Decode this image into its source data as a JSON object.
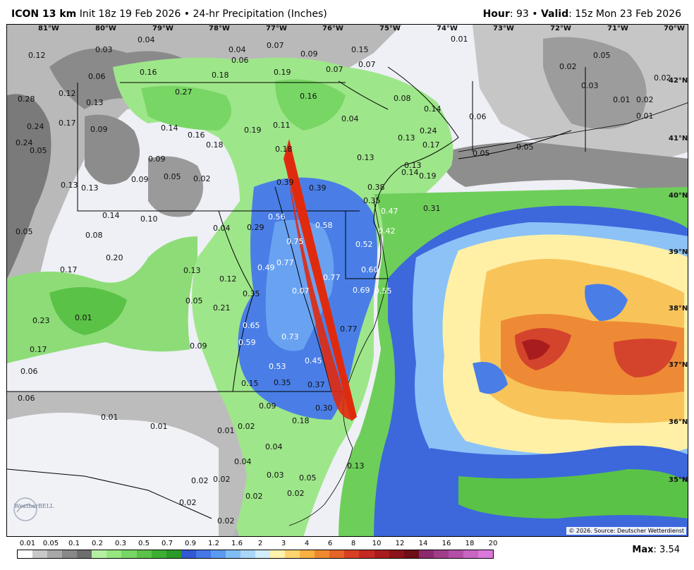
{
  "header": {
    "model": "ICON 13 km",
    "init": "Init 18z 19 Feb 2026",
    "separator": "•",
    "product": "24-hr Precipitation (Inches)",
    "hour_label": "Hour",
    "hour_value": ": 93",
    "valid_label": "Valid",
    "valid_value": ": 15z Mon 23 Feb 2026"
  },
  "map": {
    "longitudes": [
      "81°W",
      "80°W",
      "79°W",
      "78°W",
      "77°W",
      "76°W",
      "75°W",
      "74°W",
      "73°W",
      "72°W",
      "71°W",
      "70°W"
    ],
    "latitudes": [
      "42°N",
      "41°N",
      "40°N",
      "39°N",
      "38°N",
      "37°N",
      "36°N",
      "35°N"
    ],
    "values": [
      "0.04",
      "0.03",
      "0.12",
      "0.04",
      "0.06",
      "0.07",
      "0.09",
      "0.15",
      "0.07",
      "0.01",
      "0.05",
      "0.02",
      "0.06",
      "0.16",
      "0.18",
      "0.19",
      "0.07",
      "0.28",
      "0.12",
      "0.27",
      "0.16",
      "0.08",
      "0.03",
      "0.02",
      "0.13",
      "0.14",
      "0.06",
      "0.01",
      "0.02",
      "0.24",
      "0.17",
      "0.09",
      "0.14",
      "0.16",
      "0.19",
      "0.11",
      "0.04",
      "0.24",
      "0.01",
      "0.13",
      "0.18",
      "0.17",
      "0.05",
      "0.24",
      "0.05",
      "0.09",
      "0.18",
      "0.13",
      "0.13",
      "0.14",
      "0.19",
      "0.05",
      "0.09",
      "0.05",
      "0.02",
      "0.39",
      "0.39",
      "0.13",
      "0.13",
      "0.38",
      "0.35",
      "0.31",
      "0.14",
      "0.10",
      "0.47",
      "0.05",
      "0.08",
      "0.04",
      "0.29",
      "0.56",
      "0.58",
      "0.42",
      "0.52",
      "0.20",
      "0.75",
      "0.17",
      "0.13",
      "0.77",
      "0.60",
      "0.49",
      "0.12",
      "0.07",
      "0.77",
      "0.69",
      "0.55",
      "0.35",
      "0.05",
      "0.21",
      "0.23",
      "0.01",
      "0.65",
      "0.73",
      "0.77",
      "0.59",
      "0.09",
      "0.17",
      "0.53",
      "0.45",
      "0.06",
      "0.15",
      "0.35",
      "0.37",
      "0.06",
      "0.09",
      "0.30",
      "0.01",
      "0.01",
      "0.01",
      "0.02",
      "0.18",
      "0.04",
      "0.04",
      "0.13",
      "0.02",
      "0.02",
      "0.03",
      "0.05",
      "0.02",
      "0.02",
      "0.02",
      "0.02"
    ],
    "copyright": "© 2026. Source: Deutscher Wetterdienst",
    "logo_text": "WeatherBELL"
  },
  "legend": {
    "labels": [
      "0.01",
      "0.05",
      "0.1",
      "0.2",
      "0.3",
      "0.5",
      "0.7",
      "0.9",
      "1.2",
      "1.6",
      "2",
      "3",
      "4",
      "6",
      "8",
      "10",
      "12",
      "14",
      "16",
      "18",
      "20"
    ],
    "colors": [
      "#ffffff",
      "#c8c8c8",
      "#a8a8a8",
      "#888888",
      "#6e6e6e",
      "#b4f0a0",
      "#96e682",
      "#78d664",
      "#5ac246",
      "#3cae32",
      "#2a9a28",
      "#3258d6",
      "#4678e6",
      "#5a9af0",
      "#82bef6",
      "#aad6fa",
      "#d2ecfc",
      "#fff2aa",
      "#ffd46e",
      "#f8b040",
      "#f08830",
      "#e66428",
      "#d84024",
      "#c42a22",
      "#a81c1e",
      "#8a141a",
      "#6e0e16",
      "#8c2a6e",
      "#a03c8a",
      "#b44ea6",
      "#c864c2",
      "#dc78dc"
    ]
  },
  "max": {
    "label": "Max",
    "value": ": 3.54"
  }
}
